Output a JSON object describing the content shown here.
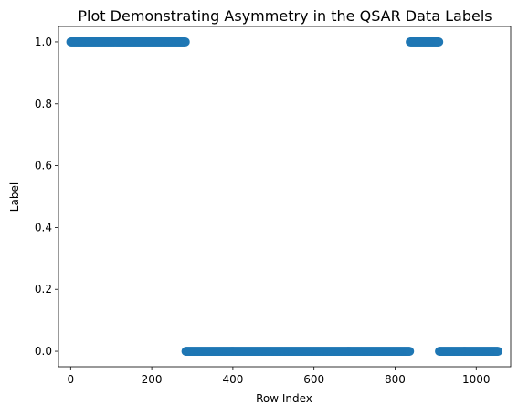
{
  "chart_data": {
    "type": "scatter",
    "title": "Plot Demonstrating Asymmetry in the QSAR Data Labels",
    "xlabel": "Row Index",
    "ylabel": "Label",
    "xlim": [
      -30,
      1085
    ],
    "ylim": [
      -0.05,
      1.05
    ],
    "xticks": [
      "0",
      "200",
      "400",
      "600",
      "800",
      "1000"
    ],
    "yticks": [
      "0.0",
      "0.2",
      "0.4",
      "0.6",
      "0.8",
      "1.0"
    ],
    "grid": false,
    "marker_color": "#1f77b4",
    "segments": [
      {
        "label_value": 1,
        "x_start": 0,
        "x_end": 283
      },
      {
        "label_value": 0,
        "x_start": 284,
        "x_end": 836
      },
      {
        "label_value": 1,
        "x_start": 837,
        "x_end": 908
      },
      {
        "label_value": 0,
        "x_start": 909,
        "x_end": 1054
      }
    ]
  }
}
